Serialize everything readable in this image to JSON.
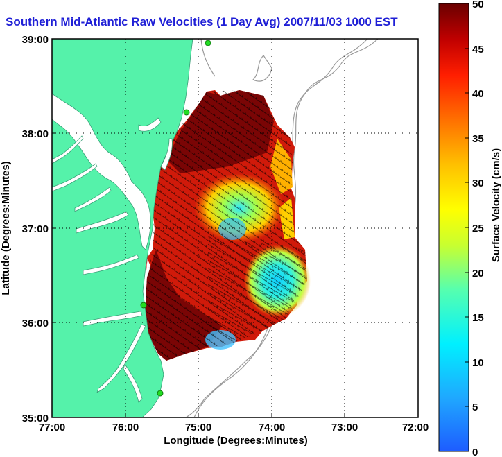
{
  "title": "Southern Mid-Atlantic Raw Velocities (1 Day Avg) 2007/11/03 1000 EST",
  "axes": {
    "xlabel": "Longitude (Degrees:Minutes)",
    "ylabel": "Latitude (Degrees:Minutes)",
    "xticks": [
      "77:00",
      "76:00",
      "75:00",
      "74:00",
      "73:00",
      "72:00"
    ],
    "yticks": [
      "39:00",
      "38:00",
      "37:00",
      "36:00",
      "35:00"
    ]
  },
  "colorbar": {
    "label": "Surface Velocity (cm/s)",
    "ticks": [
      "50",
      "45",
      "40",
      "35",
      "30",
      "25",
      "20",
      "15",
      "10",
      "5",
      "0"
    ],
    "range": [
      0,
      50
    ]
  },
  "colors": {
    "land": "#55f2aa",
    "water": "#ffffff",
    "title": "#1f1fd6",
    "station": "#22dd22",
    "contour": "#999999"
  },
  "grid": "dotted"
}
